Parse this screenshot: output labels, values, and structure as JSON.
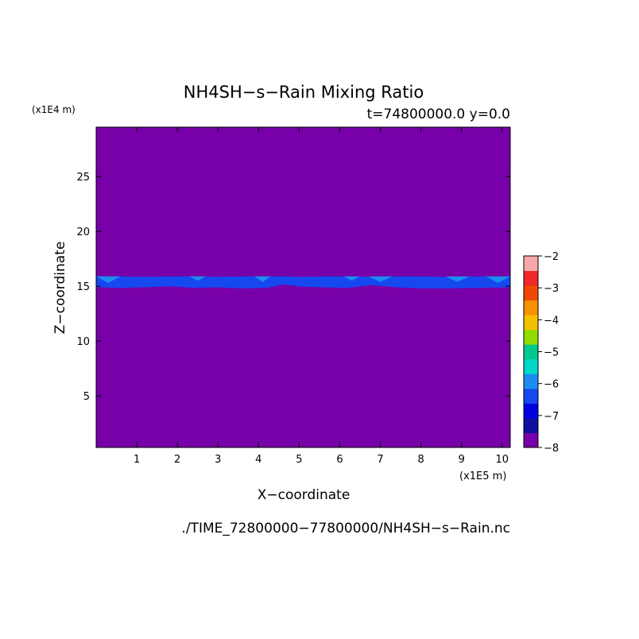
{
  "chart_data": {
    "type": "heatmap",
    "title": "NH4SH−s−Rain Mixing Ratio",
    "subtitle": "t=74800000.0 y=0.0",
    "xlabel": "X−coordinate",
    "ylabel": "Z−coordinate",
    "x_scale_label": "(x1E5 m)",
    "y_scale_label": "(x1E4 m)",
    "footer": "./TIME_72800000−77800000/NH4SH−s−Rain.nc",
    "xlim": [
      0,
      10.2
    ],
    "ylim": [
      0.3,
      29.5
    ],
    "x_ticks": [
      1,
      2,
      3,
      4,
      5,
      6,
      7,
      8,
      9,
      10
    ],
    "y_ticks": [
      5,
      10,
      15,
      20,
      25
    ],
    "background_level": -8,
    "colorbar": {
      "levels": [
        -8,
        -7.5,
        -7,
        -6.5,
        -6,
        -5.5,
        -5,
        -4.5,
        -4,
        -3.5,
        -3,
        -2.5,
        -2
      ],
      "tick_labels": [
        "−8",
        "−7",
        "−6",
        "−5",
        "−4",
        "−3",
        "−2"
      ],
      "tick_values": [
        -8,
        -7,
        -6,
        -5,
        -4,
        -3,
        -2
      ],
      "colors": [
        "#7700a8",
        "#1010a0",
        "#0000e0",
        "#1648f0",
        "#1c8cf0",
        "#00d8c8",
        "#00c890",
        "#90dc00",
        "#f4c000",
        "#f89000",
        "#f04800",
        "#f02828",
        "#f8a8a8"
      ]
    },
    "band": {
      "description_level_outer": -7,
      "level_core": -6.5,
      "level_patch": -6,
      "z_bottom": [
        14.9,
        14.85,
        14.9,
        15.0,
        14.85,
        14.9,
        14.8,
        14.85,
        15.15,
        14.95,
        14.9,
        14.85,
        15.1,
        14.9,
        14.8,
        14.8,
        14.85,
        14.9
      ],
      "z_top": [
        15.9,
        15.9,
        15.85,
        15.9,
        15.9,
        15.85,
        15.9,
        15.9,
        15.9,
        15.85,
        15.9,
        15.9,
        15.85,
        15.9,
        15.9,
        15.85,
        15.9,
        15.9
      ],
      "x": [
        0,
        0.6,
        1.2,
        1.8,
        2.4,
        3.0,
        3.6,
        4.2,
        4.6,
        5.1,
        5.6,
        6.2,
        6.8,
        7.4,
        8.0,
        8.6,
        9.4,
        10.2
      ],
      "patches": [
        {
          "x": [
            0.0,
            0.6
          ],
          "z": [
            15.3,
            15.9
          ]
        },
        {
          "x": [
            2.3,
            2.7
          ],
          "z": [
            15.5,
            15.9
          ]
        },
        {
          "x": [
            3.9,
            4.3
          ],
          "z": [
            15.4,
            15.9
          ]
        },
        {
          "x": [
            6.1,
            6.5
          ],
          "z": [
            15.5,
            15.9
          ]
        },
        {
          "x": [
            6.7,
            7.3
          ],
          "z": [
            15.4,
            15.9
          ]
        },
        {
          "x": [
            8.6,
            9.2
          ],
          "z": [
            15.4,
            15.9
          ]
        },
        {
          "x": [
            9.6,
            10.2
          ],
          "z": [
            15.3,
            15.9
          ]
        }
      ]
    }
  }
}
